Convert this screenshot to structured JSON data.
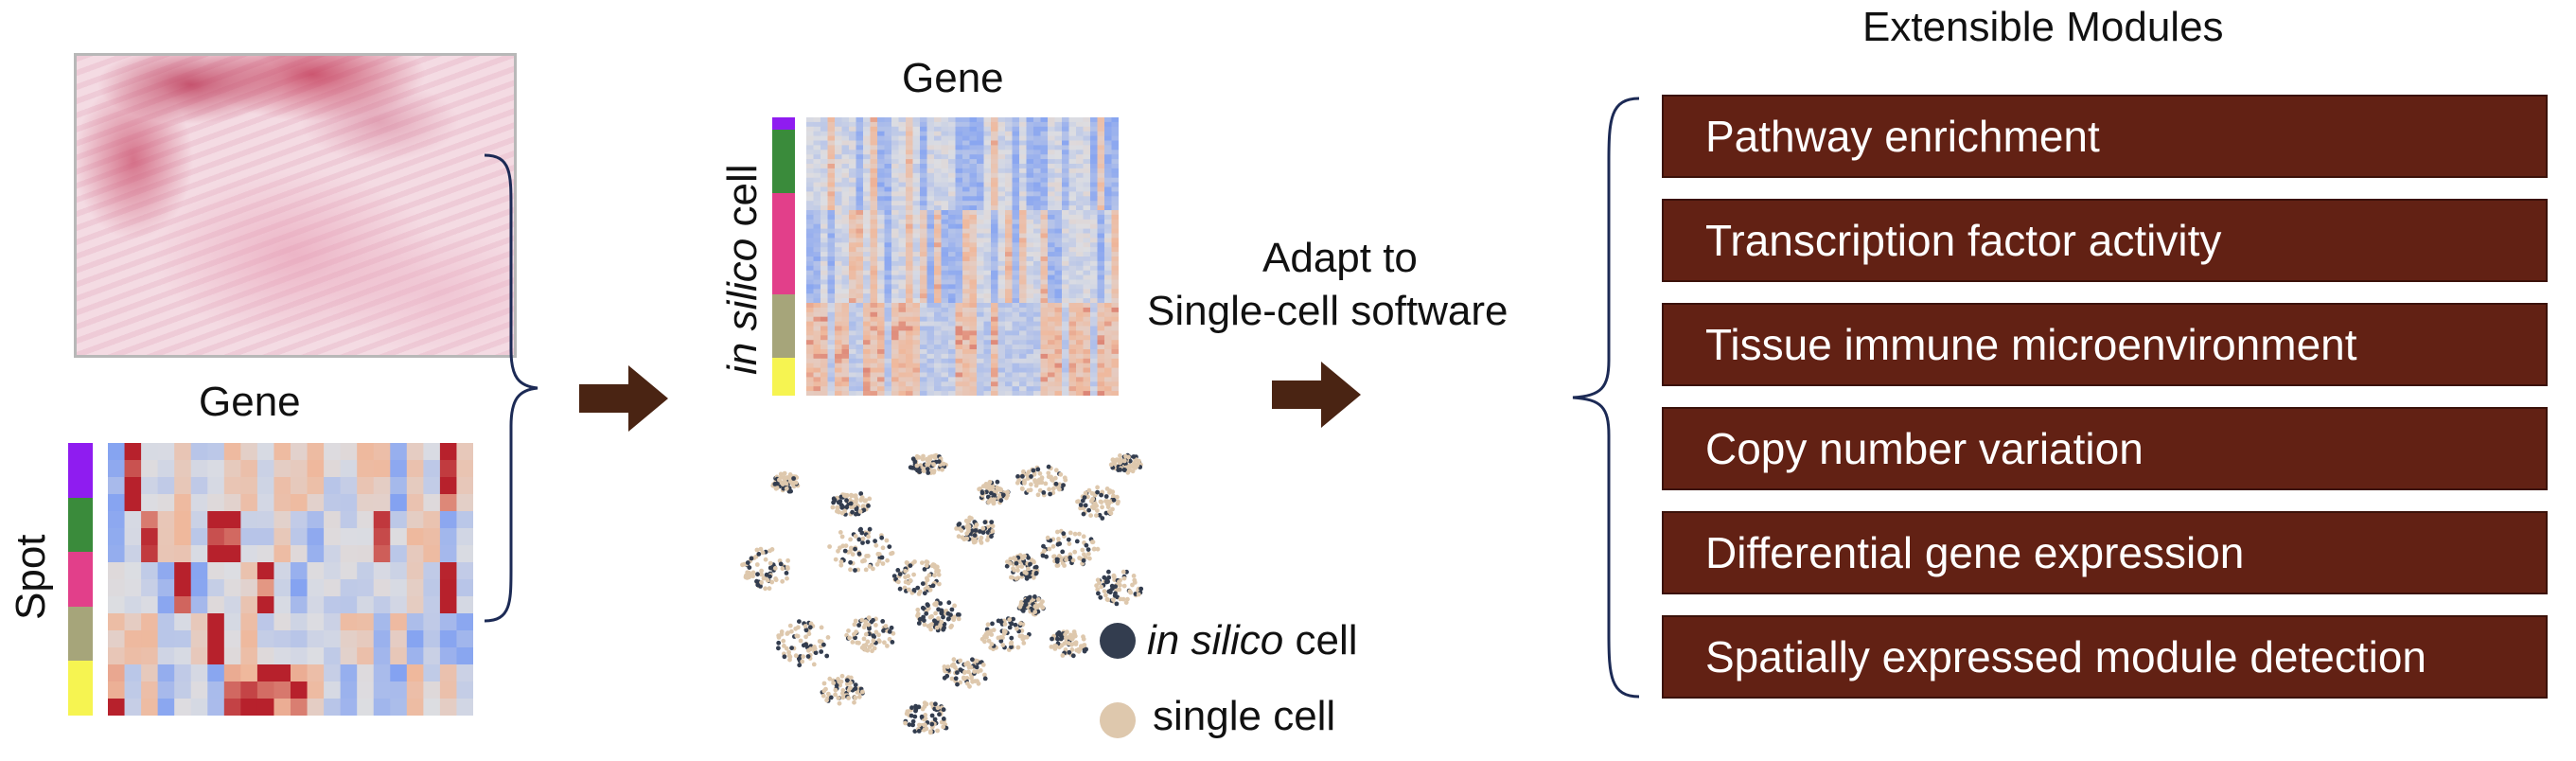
{
  "left": {
    "gene_label": "Gene",
    "spot_label": "Spot",
    "heatmap_rows": 16,
    "heatmap_cols": 22,
    "cluster_colors": [
      "#8f1cf0",
      "#3a8b3b",
      "#e23f8a",
      "#a6a57a",
      "#f6f451"
    ]
  },
  "middle": {
    "gene_label": "Gene",
    "cell_label_italic": "in silico",
    "cell_label_plain": " cell",
    "heatmap_rows": 60,
    "heatmap_cols": 44,
    "cluster_colors": [
      "#8f1cf0",
      "#3a8b3b",
      "#e23f8a",
      "#a6a57a",
      "#f6f451"
    ],
    "legend": [
      {
        "italic": "in silico",
        "plain": " cell",
        "color": "#333d4f"
      },
      {
        "italic": "",
        "plain": "single cell",
        "color": "#dec8ad"
      }
    ]
  },
  "adapt": {
    "line1": "Adapt to",
    "line2": "Single-cell software"
  },
  "modules": {
    "title": "Extensible Modules",
    "items": [
      "Pathway enrichment",
      "Transcription factor activity",
      "Tissue immune microenvironment",
      "Copy number variation",
      "Differential gene expression",
      "Spatially expressed module detection"
    ]
  },
  "colors": {
    "module_bg": "#622114",
    "arrow": "#4a2413",
    "brace": "#1c2a55",
    "heat_low": "#7f9ff2",
    "heat_mid": "#dcdde2",
    "heat_high": "#b7212c"
  }
}
